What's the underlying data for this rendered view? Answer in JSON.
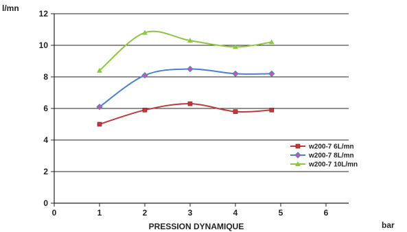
{
  "chart_data": {
    "type": "line",
    "title": "",
    "xlabel": "PRESSION DYNAMIQUE",
    "ylabel": "l/mn",
    "x_unit": "bar",
    "xlim": [
      0,
      6.5
    ],
    "ylim": [
      0,
      12
    ],
    "xticks": [
      0,
      1,
      2,
      3,
      4,
      5,
      6
    ],
    "yticks": [
      0,
      2,
      4,
      6,
      8,
      10,
      12
    ],
    "grid": "horizontal",
    "legend_position": "right",
    "smooth": true,
    "series": [
      {
        "name": "w200-7 6L/mn",
        "color": "#c0393b",
        "marker": "square",
        "x": [
          1,
          2,
          3,
          4,
          4.8
        ],
        "y": [
          5.0,
          5.9,
          6.3,
          5.8,
          5.9
        ]
      },
      {
        "name": "w200-7 8L/mn",
        "color": "#4a7fd4",
        "marker": "diamond",
        "x": [
          1,
          2,
          3,
          4,
          4.8
        ],
        "y": [
          6.1,
          8.1,
          8.5,
          8.2,
          8.2
        ]
      },
      {
        "name": "w200-7 10L/mn",
        "color": "#8cc63f",
        "marker": "triangle",
        "x": [
          1,
          2,
          3,
          4,
          4.8
        ],
        "y": [
          8.4,
          10.8,
          10.3,
          9.9,
          10.2
        ]
      }
    ]
  }
}
